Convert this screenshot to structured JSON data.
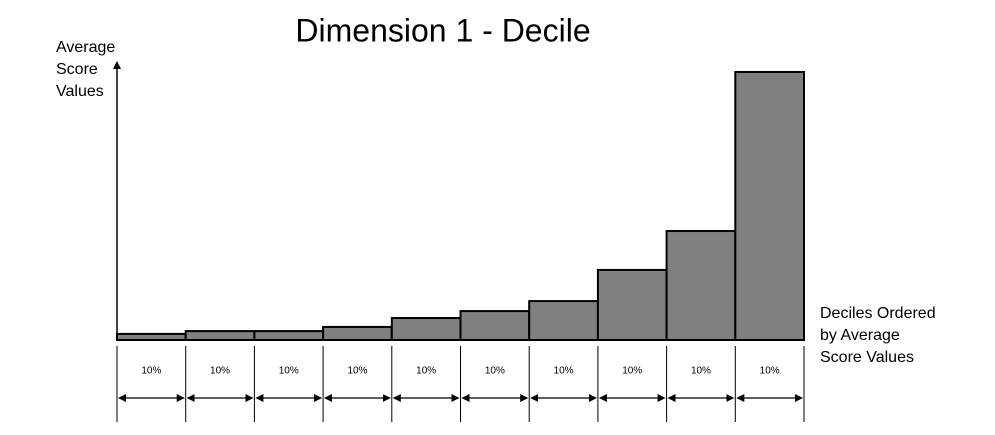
{
  "chart_data": {
    "type": "bar",
    "title": "Dimension 1 - Decile",
    "y_label_lines": [
      "Average",
      "Score",
      "Values"
    ],
    "x_label_lines": [
      "Deciles Ordered",
      "by Average",
      "Score Values"
    ],
    "categories": [
      "10%",
      "10%",
      "10%",
      "10%",
      "10%",
      "10%",
      "10%",
      "10%",
      "10%",
      "10%"
    ],
    "values": [
      2.2,
      3.2,
      3.2,
      4.7,
      7.9,
      10.4,
      14.0,
      25.2,
      39.2,
      96.4
    ],
    "color": "#808080",
    "ylim": [
      0,
      100
    ]
  }
}
